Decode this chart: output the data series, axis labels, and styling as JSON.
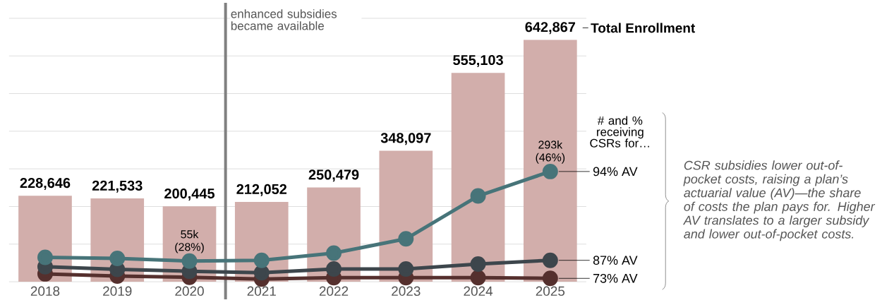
{
  "chart_data": {
    "type": "bar",
    "x": [
      2018,
      2019,
      2020,
      2021,
      2022,
      2023,
      2024,
      2025
    ],
    "xlim": [
      2017.5,
      2025.5
    ],
    "xticks": [
      2018,
      2019,
      2020,
      2021,
      2022,
      2023,
      2024,
      2025
    ],
    "ylim": [
      0,
      700000
    ],
    "yticks": [
      0,
      100000,
      200000,
      300000,
      400000,
      500000,
      600000,
      700000
    ],
    "grid": "y",
    "tick_labels": "x",
    "marker": "circle",
    "legend_title": "# and % receiving CSRs for…",
    "series": [
      {
        "name": "Total Enrollment",
        "color": "#d2aeab",
        "values": [
          228646,
          221533,
          200445,
          212052,
          250479,
          348097,
          555103,
          642867
        ],
        "value_labels": [
          "228,646",
          "221,533",
          "200,445",
          "212,052",
          "250,479",
          "348,097",
          "555,103",
          "642,867"
        ]
      },
      {
        "name": "73% AV",
        "type": "line",
        "color": "#55302e",
        "values": [
          21000,
          15000,
          12000,
          7000,
          11000,
          11000,
          11000,
          9000
        ]
      },
      {
        "name": "87% AV",
        "type": "line",
        "color": "#3d464c",
        "values": [
          40000,
          33000,
          28000,
          24000,
          34000,
          34000,
          47000,
          57000
        ]
      },
      {
        "name": "94% AV",
        "type": "line",
        "color": "#477479",
        "values": [
          65000,
          62000,
          55000,
          57000,
          76000,
          114000,
          228000,
          293000
        ],
        "value_labels": [
          null,
          null,
          "55k (28%)",
          null,
          null,
          null,
          null,
          "293k (46%)"
        ]
      }
    ],
    "ref_lines": [
      {
        "axis": "x",
        "value": 2020.5,
        "label": "enhanced subsidies became available",
        "color": "#808080"
      }
    ],
    "annotations": [
      "CSR subsidies lower out-of-pocket costs, raising a plan’s actuarial value (AV)—the share of costs the plan pays for. Higher AV translates to a larger subsidy and lower out-of-pocket costs."
    ]
  }
}
